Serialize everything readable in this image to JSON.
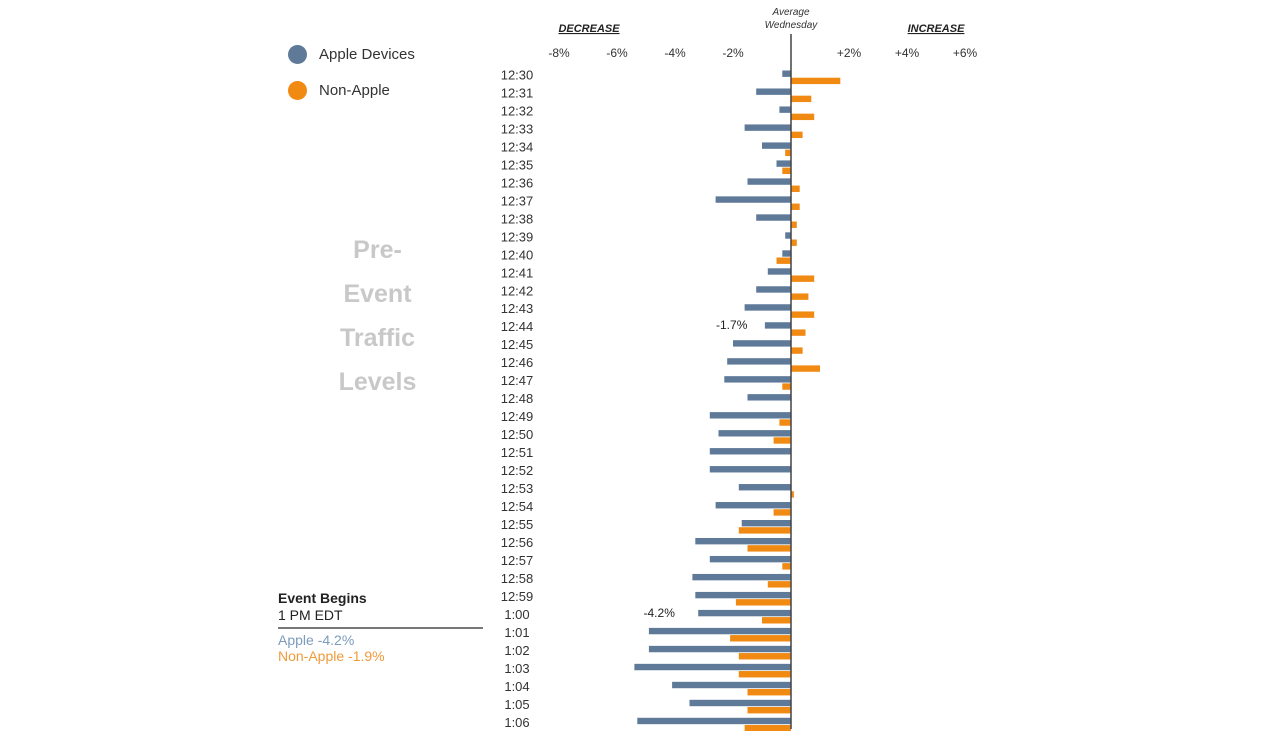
{
  "colors": {
    "apple": "#5f7a99",
    "non_apple": "#f08a12",
    "axis": "#444444"
  },
  "legend": [
    {
      "label": "Apple Devices",
      "color": "#5f7a99"
    },
    {
      "label": "Non-Apple",
      "color": "#f08a12"
    }
  ],
  "side_label": [
    "Pre-",
    "Event",
    "Traffic",
    "Levels"
  ],
  "event": {
    "title": "Event Begins",
    "subtitle": "1 PM EDT",
    "apple": "Apple -4.2%",
    "non_apple": "Non-Apple -1.9%"
  },
  "chart_data": {
    "type": "bar",
    "orientation": "horizontal",
    "header_left": "DECREASE",
    "header_center": [
      "Average",
      "Wednesday"
    ],
    "header_right": "INCREASE",
    "x_ticks": [
      "-8%",
      "-6%",
      "-4%",
      "-2%",
      "+2%",
      "+4%",
      "+6%"
    ],
    "x_tick_values": [
      -8,
      -6,
      -4,
      -2,
      2,
      4,
      6
    ],
    "xlim": [
      -8.4,
      6.5
    ],
    "categories": [
      "12:30",
      "12:31",
      "12:32",
      "12:33",
      "12:34",
      "12:35",
      "12:36",
      "12:37",
      "12:38",
      "12:39",
      "12:40",
      "12:41",
      "12:42",
      "12:43",
      "12:44",
      "12:45",
      "12:46",
      "12:47",
      "12:48",
      "12:49",
      "12:50",
      "12:51",
      "12:52",
      "12:53",
      "12:54",
      "12:55",
      "12:56",
      "12:57",
      "12:58",
      "12:59",
      "1:00",
      "1:01",
      "1:02",
      "1:03",
      "1:04",
      "1:05",
      "1:06"
    ],
    "series": [
      {
        "name": "Apple Devices",
        "color": "#5f7a99",
        "values": [
          -0.3,
          -1.2,
          -0.4,
          -1.6,
          -1.0,
          -0.5,
          -1.5,
          -2.6,
          -1.2,
          -0.2,
          -0.3,
          -0.8,
          -1.2,
          -1.6,
          -0.9,
          -2.0,
          -2.2,
          -2.3,
          -1.5,
          -2.8,
          -2.5,
          -2.8,
          -2.8,
          -1.8,
          -2.6,
          -1.7,
          -3.3,
          -2.8,
          -3.4,
          -3.3,
          -3.2,
          -4.9,
          -4.9,
          -5.4,
          -4.1,
          -3.5,
          -5.3
        ]
      },
      {
        "name": "Non-Apple",
        "color": "#f08a12",
        "values": [
          1.7,
          0.7,
          0.8,
          0.4,
          -0.2,
          -0.3,
          0.3,
          0.3,
          0.2,
          0.2,
          -0.5,
          0.8,
          0.6,
          0.8,
          0.5,
          0.4,
          1.0,
          -0.3,
          0.0,
          -0.4,
          -0.6,
          0.0,
          0.0,
          0.1,
          -0.6,
          -1.8,
          -1.5,
          -0.3,
          -0.8,
          -1.9,
          -1.0,
          -2.1,
          -1.8,
          -1.8,
          -1.5,
          -1.5,
          -1.6
        ]
      }
    ],
    "annotations": [
      {
        "text": "-1.7%",
        "category": "12:44",
        "value": -1.7
      },
      {
        "text": "-4.2%",
        "category": "1:00",
        "value": -4.2
      }
    ]
  }
}
